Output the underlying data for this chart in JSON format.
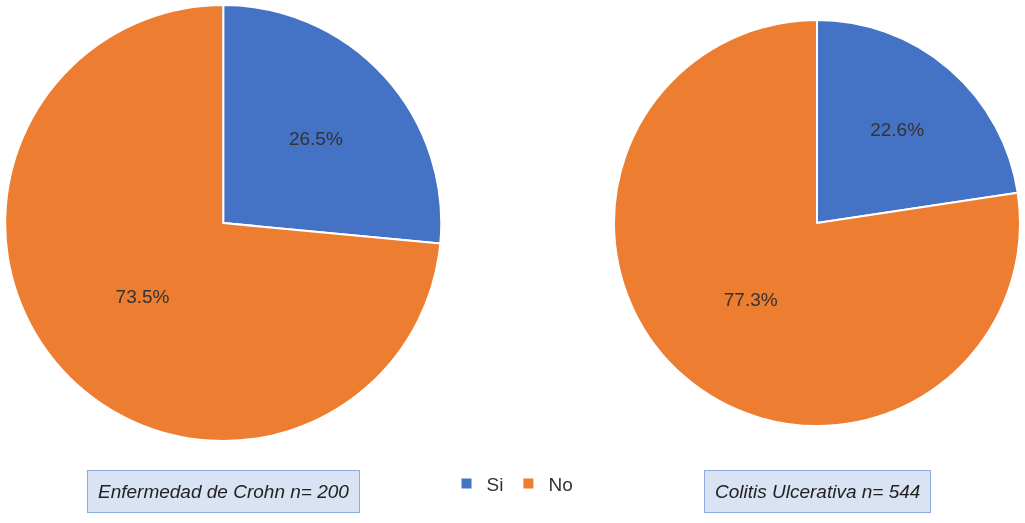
{
  "chart_data": [
    {
      "type": "pie",
      "title": "Enfermedad de Crohn n= 200",
      "categories": [
        "Si",
        "No"
      ],
      "values": [
        26.5,
        73.5
      ],
      "colors": [
        "#4472c4",
        "#ed7d31"
      ],
      "value_labels": [
        "26.5%",
        "73.5%"
      ],
      "legend": "bottom"
    },
    {
      "type": "pie",
      "title": "Colitis Ulcerativa n= 544",
      "categories": [
        null,
        null
      ],
      "values": [
        22.6,
        77.3
      ],
      "colors": [
        "#4472c4",
        "#ed7d31"
      ],
      "value_labels": [
        "22.6%",
        "77.3%"
      ]
    }
  ]
}
